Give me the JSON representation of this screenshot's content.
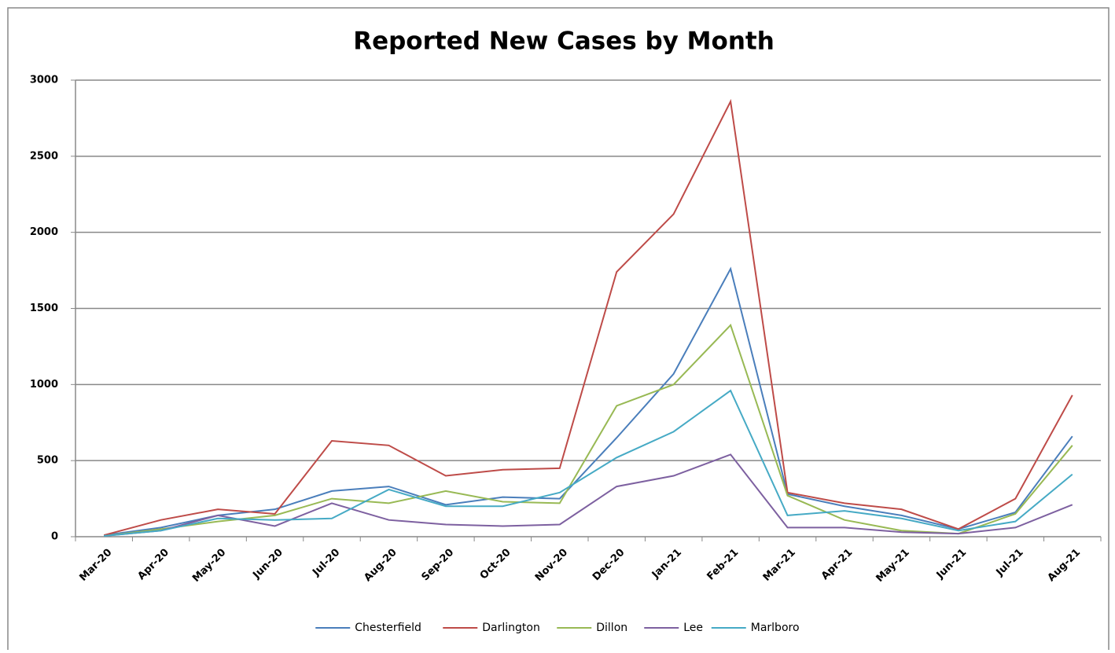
{
  "chart_data": {
    "type": "line",
    "title": "Reported New Cases by Month",
    "categories": [
      "Mar-20",
      "Apr-20",
      "May-20",
      "Jun-20",
      "Jul-20",
      "Aug-20",
      "Sep-20",
      "Oct-20",
      "Nov-20",
      "Dec-20",
      "Jan-21",
      "Feb-21",
      "Mar-21",
      "Apr-21",
      "May-21",
      "Jun-21",
      "Jul-21",
      "Aug-21"
    ],
    "series": [
      {
        "name": "Chesterfield",
        "color": "#4a7ebb",
        "values": [
          10,
          60,
          140,
          180,
          300,
          330,
          210,
          260,
          250,
          650,
          1070,
          1760,
          280,
          200,
          140,
          50,
          160,
          660
        ]
      },
      {
        "name": "Darlington",
        "color": "#be4b48",
        "values": [
          10,
          110,
          180,
          150,
          630,
          600,
          400,
          440,
          450,
          1740,
          2120,
          2860,
          290,
          220,
          180,
          50,
          250,
          930
        ]
      },
      {
        "name": "Dillon",
        "color": "#98b954",
        "values": [
          5,
          50,
          100,
          140,
          250,
          220,
          300,
          230,
          220,
          860,
          1000,
          1390,
          270,
          110,
          40,
          20,
          150,
          600
        ]
      },
      {
        "name": "Lee",
        "color": "#7d60a0",
        "values": [
          5,
          40,
          140,
          70,
          220,
          110,
          80,
          70,
          80,
          330,
          400,
          540,
          60,
          60,
          30,
          20,
          60,
          210
        ]
      },
      {
        "name": "Marlboro",
        "color": "#46aac5",
        "values": [
          5,
          40,
          120,
          110,
          120,
          310,
          200,
          200,
          290,
          520,
          690,
          960,
          140,
          170,
          120,
          40,
          100,
          410
        ]
      }
    ],
    "ylim": [
      0,
      3000
    ],
    "yticks": [
      0,
      500,
      1000,
      1500,
      2000,
      2500,
      3000
    ],
    "grid": true,
    "legend": "bottom"
  }
}
